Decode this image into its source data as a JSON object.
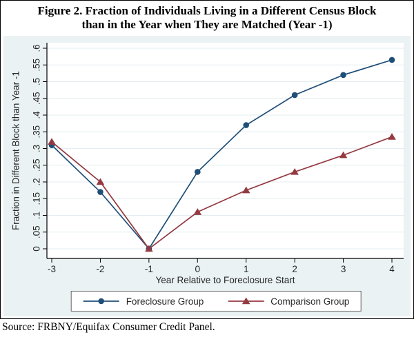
{
  "figure": {
    "title_line1": "Figure 2. Fraction of Individuals Living in a Different Census Block",
    "title_line2": "than in the Year when They are Matched (Year -1)",
    "source": "Source: FRBNY/Equifax Consumer Credit Panel."
  },
  "chart_data": {
    "type": "line",
    "title": "Figure 2. Fraction of Individuals Living in a Different Census Block than in the Year when They are Matched (Year -1)",
    "x": [
      -3,
      -2,
      -1,
      0,
      1,
      2,
      3,
      4
    ],
    "xtick_labels": [
      "-3",
      "-2",
      "-1",
      "0",
      "1",
      "2",
      "3",
      "4"
    ],
    "series": [
      {
        "name": "Foreclosure Group",
        "marker": "circle",
        "color": "#1f4e77",
        "values": [
          0.31,
          0.17,
          0,
          0.23,
          0.37,
          0.46,
          0.52,
          0.565
        ]
      },
      {
        "name": "Comparison Group",
        "marker": "triangle",
        "color": "#943a41",
        "values": [
          0.32,
          0.2,
          0,
          0.11,
          0.175,
          0.23,
          0.28,
          0.335
        ]
      }
    ],
    "xlabel": "Year Relative to Foreclosure Start",
    "ylabel": "Fraction in Different Block than Year -1",
    "ylim": [
      0,
      0.6
    ],
    "ytick_step": 0.05,
    "ytick_labels": [
      "0",
      ".05",
      ".1",
      ".15",
      ".2",
      ".25",
      ".3",
      ".35",
      ".4",
      ".45",
      ".5",
      ".55",
      ".6"
    ],
    "grid": true,
    "legend_position": "bottom",
    "colors": {
      "background": "#eaf2f3",
      "plot_background": "#ffffff",
      "gridline": "#e3edf0",
      "axis": "#000000",
      "text": "#262626",
      "legend_border": "#636363"
    }
  }
}
